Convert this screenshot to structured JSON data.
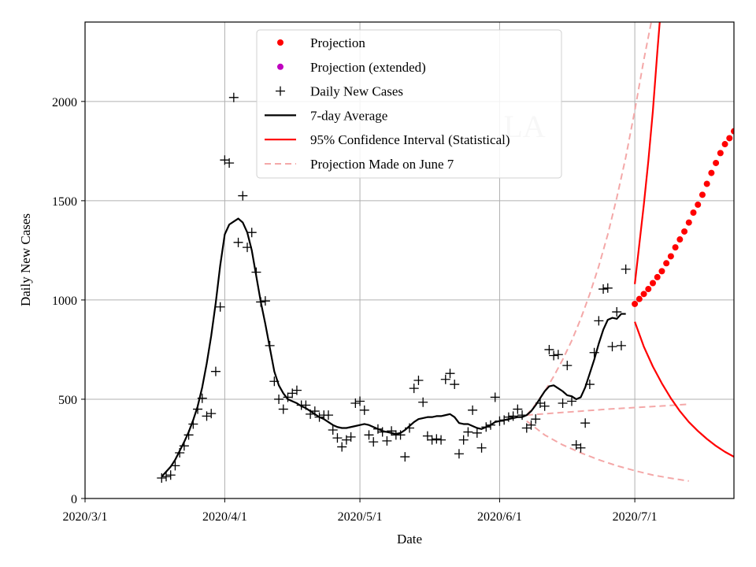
{
  "chart_data": {
    "type": "line",
    "title": "",
    "watermark": "LA",
    "xlabel": "Date",
    "ylabel": "Daily New Cases",
    "x_origin": "2020-03-01",
    "xlim_days": [
      0,
      144
    ],
    "ylim": [
      0,
      2400
    ],
    "grid": true,
    "legend_position": "top-center",
    "xticks": [
      {
        "day": 0,
        "label": "2020/3/1"
      },
      {
        "day": 31,
        "label": "2020/4/1"
      },
      {
        "day": 61,
        "label": "2020/5/1"
      },
      {
        "day": 92,
        "label": "2020/6/1"
      },
      {
        "day": 122,
        "label": "2020/7/1"
      }
    ],
    "yticks": [
      {
        "value": 0,
        "label": "0"
      },
      {
        "value": 500,
        "label": "500"
      },
      {
        "value": 1000,
        "label": "1000"
      },
      {
        "value": 1500,
        "label": "1500"
      },
      {
        "value": 2000,
        "label": "2000"
      }
    ],
    "legend": [
      {
        "key": "projection",
        "label": "Projection",
        "style": "dot",
        "color": "#ff0000"
      },
      {
        "key": "projection_ext",
        "label": "Projection (extended)",
        "style": "dot",
        "color": "#bf00bf"
      },
      {
        "key": "daily",
        "label": "Daily New Cases",
        "style": "plus",
        "color": "#000000"
      },
      {
        "key": "avg",
        "label": "7-day Average",
        "style": "line",
        "color": "#000000"
      },
      {
        "key": "ci",
        "label": "95% Confidence Interval (Statistical)",
        "style": "line",
        "color": "#ff0000"
      },
      {
        "key": "june7",
        "label": "Projection Made on June 7",
        "style": "dash",
        "color": "#f4a8a8"
      }
    ],
    "series": [
      {
        "name": "Daily New Cases",
        "kind": "scatter-plus",
        "color": "#000000",
        "points": [
          [
            17,
            103
          ],
          [
            18,
            110
          ],
          [
            19,
            118
          ],
          [
            20,
            165
          ],
          [
            21,
            230
          ],
          [
            22,
            265
          ],
          [
            23,
            320
          ],
          [
            24,
            375
          ],
          [
            25,
            450
          ],
          [
            26,
            505
          ],
          [
            27,
            415
          ],
          [
            28,
            428
          ],
          [
            29,
            640
          ],
          [
            30,
            965
          ],
          [
            31,
            1705
          ],
          [
            32,
            1690
          ],
          [
            33,
            2020
          ],
          [
            34,
            1290
          ],
          [
            35,
            1525
          ],
          [
            36,
            1265
          ],
          [
            37,
            1340
          ],
          [
            38,
            1140
          ],
          [
            39,
            990
          ],
          [
            40,
            995
          ],
          [
            41,
            770
          ],
          [
            42,
            590
          ],
          [
            43,
            500
          ],
          [
            44,
            450
          ],
          [
            45,
            510
          ],
          [
            46,
            530
          ],
          [
            47,
            545
          ],
          [
            48,
            470
          ],
          [
            49,
            470
          ],
          [
            50,
            425
          ],
          [
            51,
            440
          ],
          [
            52,
            410
          ],
          [
            53,
            420
          ],
          [
            54,
            420
          ],
          [
            55,
            345
          ],
          [
            56,
            305
          ],
          [
            57,
            260
          ],
          [
            58,
            295
          ],
          [
            59,
            310
          ],
          [
            60,
            480
          ],
          [
            61,
            490
          ],
          [
            62,
            445
          ],
          [
            63,
            320
          ],
          [
            64,
            285
          ],
          [
            65,
            350
          ],
          [
            66,
            335
          ],
          [
            67,
            290
          ],
          [
            68,
            340
          ],
          [
            69,
            320
          ],
          [
            70,
            320
          ],
          [
            71,
            210
          ],
          [
            72,
            355
          ],
          [
            73,
            555
          ],
          [
            74,
            595
          ],
          [
            75,
            485
          ],
          [
            76,
            315
          ],
          [
            77,
            295
          ],
          [
            78,
            300
          ],
          [
            79,
            295
          ],
          [
            80,
            600
          ],
          [
            81,
            630
          ],
          [
            82,
            575
          ],
          [
            83,
            225
          ],
          [
            84,
            295
          ],
          [
            85,
            335
          ],
          [
            86,
            445
          ],
          [
            87,
            330
          ],
          [
            88,
            255
          ],
          [
            89,
            360
          ],
          [
            90,
            370
          ],
          [
            91,
            510
          ],
          [
            92,
            390
          ],
          [
            93,
            395
          ],
          [
            94,
            410
          ],
          [
            95,
            415
          ],
          [
            96,
            450
          ],
          [
            97,
            420
          ],
          [
            98,
            355
          ],
          [
            99,
            370
          ],
          [
            100,
            400
          ],
          [
            101,
            480
          ],
          [
            102,
            465
          ],
          [
            103,
            750
          ],
          [
            104,
            720
          ],
          [
            105,
            725
          ],
          [
            106,
            480
          ],
          [
            107,
            670
          ],
          [
            108,
            490
          ],
          [
            109,
            270
          ],
          [
            110,
            255
          ],
          [
            111,
            380
          ],
          [
            112,
            575
          ],
          [
            113,
            735
          ],
          [
            114,
            895
          ],
          [
            115,
            1055
          ],
          [
            116,
            1060
          ],
          [
            117,
            765
          ],
          [
            118,
            940
          ],
          [
            119,
            770
          ],
          [
            120,
            1155
          ]
        ]
      },
      {
        "name": "7-day Average",
        "kind": "line",
        "color": "#000000",
        "points": [
          [
            17,
            110
          ],
          [
            18,
            135
          ],
          [
            19,
            160
          ],
          [
            20,
            195
          ],
          [
            21,
            240
          ],
          [
            22,
            285
          ],
          [
            23,
            335
          ],
          [
            24,
            395
          ],
          [
            25,
            465
          ],
          [
            26,
            560
          ],
          [
            27,
            680
          ],
          [
            28,
            820
          ],
          [
            29,
            985
          ],
          [
            30,
            1175
          ],
          [
            31,
            1330
          ],
          [
            32,
            1380
          ],
          [
            33,
            1395
          ],
          [
            34,
            1410
          ],
          [
            35,
            1390
          ],
          [
            36,
            1340
          ],
          [
            37,
            1250
          ],
          [
            38,
            1120
          ],
          [
            39,
            990
          ],
          [
            40,
            880
          ],
          [
            41,
            760
          ],
          [
            42,
            640
          ],
          [
            43,
            570
          ],
          [
            44,
            530
          ],
          [
            45,
            500
          ],
          [
            46,
            490
          ],
          [
            47,
            480
          ],
          [
            48,
            465
          ],
          [
            49,
            455
          ],
          [
            50,
            440
          ],
          [
            51,
            425
          ],
          [
            52,
            410
          ],
          [
            53,
            400
          ],
          [
            54,
            385
          ],
          [
            55,
            370
          ],
          [
            56,
            360
          ],
          [
            57,
            355
          ],
          [
            58,
            355
          ],
          [
            59,
            360
          ],
          [
            60,
            365
          ],
          [
            61,
            370
          ],
          [
            62,
            375
          ],
          [
            63,
            370
          ],
          [
            64,
            360
          ],
          [
            65,
            350
          ],
          [
            66,
            340
          ],
          [
            67,
            335
          ],
          [
            68,
            330
          ],
          [
            69,
            325
          ],
          [
            70,
            330
          ],
          [
            71,
            345
          ],
          [
            72,
            365
          ],
          [
            73,
            385
          ],
          [
            74,
            400
          ],
          [
            75,
            405
          ],
          [
            76,
            410
          ],
          [
            77,
            410
          ],
          [
            78,
            415
          ],
          [
            79,
            415
          ],
          [
            80,
            420
          ],
          [
            81,
            425
          ],
          [
            82,
            410
          ],
          [
            83,
            380
          ],
          [
            84,
            375
          ],
          [
            85,
            375
          ],
          [
            86,
            365
          ],
          [
            87,
            355
          ],
          [
            88,
            350
          ],
          [
            89,
            360
          ],
          [
            90,
            370
          ],
          [
            91,
            385
          ],
          [
            92,
            390
          ],
          [
            93,
            395
          ],
          [
            94,
            400
          ],
          [
            95,
            405
          ],
          [
            96,
            410
          ],
          [
            97,
            410
          ],
          [
            98,
            420
          ],
          [
            99,
            440
          ],
          [
            100,
            470
          ],
          [
            101,
            505
          ],
          [
            102,
            540
          ],
          [
            103,
            565
          ],
          [
            104,
            570
          ],
          [
            105,
            555
          ],
          [
            106,
            540
          ],
          [
            107,
            520
          ],
          [
            108,
            515
          ],
          [
            109,
            500
          ],
          [
            110,
            510
          ],
          [
            111,
            560
          ],
          [
            112,
            630
          ],
          [
            113,
            700
          ],
          [
            114,
            780
          ],
          [
            115,
            850
          ],
          [
            116,
            900
          ],
          [
            117,
            910
          ],
          [
            118,
            905
          ],
          [
            119,
            930
          ],
          [
            120,
            930
          ]
        ]
      },
      {
        "name": "Projection",
        "kind": "scatter-dot",
        "color": "#ff0000",
        "points": [
          [
            122,
            980
          ],
          [
            123,
            1005
          ],
          [
            124,
            1030
          ],
          [
            125,
            1055
          ],
          [
            126,
            1085
          ],
          [
            127,
            1115
          ],
          [
            128,
            1145
          ],
          [
            129,
            1185
          ],
          [
            130,
            1220
          ],
          [
            131,
            1265
          ],
          [
            132,
            1305
          ],
          [
            133,
            1345
          ],
          [
            134,
            1390
          ],
          [
            135,
            1440
          ],
          [
            136,
            1480
          ],
          [
            137,
            1530
          ],
          [
            138,
            1585
          ],
          [
            139,
            1640
          ],
          [
            140,
            1690
          ],
          [
            141,
            1740
          ],
          [
            142,
            1785
          ],
          [
            143,
            1815
          ],
          [
            144,
            1850
          ]
        ]
      },
      {
        "name": "95% CI upper",
        "kind": "line",
        "color": "#ff0000",
        "points": [
          [
            122,
            1080
          ],
          [
            123,
            1280
          ],
          [
            124,
            1480
          ],
          [
            125,
            1700
          ],
          [
            126,
            1950
          ],
          [
            127,
            2250
          ],
          [
            127.6,
            2420
          ]
        ]
      },
      {
        "name": "95% CI lower",
        "kind": "line",
        "color": "#ff0000",
        "points": [
          [
            122,
            890
          ],
          [
            124,
            765
          ],
          [
            126,
            665
          ],
          [
            128,
            580
          ],
          [
            130,
            505
          ],
          [
            132,
            440
          ],
          [
            134,
            385
          ],
          [
            136,
            340
          ],
          [
            138,
            300
          ],
          [
            140,
            265
          ],
          [
            142,
            235
          ],
          [
            144,
            210
          ]
        ]
      },
      {
        "name": "June 7 projection upper",
        "kind": "dash",
        "color": "#f4a8a8",
        "points": [
          [
            98,
            420
          ],
          [
            100,
            475
          ],
          [
            102,
            540
          ],
          [
            104,
            615
          ],
          [
            106,
            700
          ],
          [
            108,
            795
          ],
          [
            110,
            905
          ],
          [
            112,
            1030
          ],
          [
            114,
            1170
          ],
          [
            116,
            1330
          ],
          [
            118,
            1515
          ],
          [
            120,
            1720
          ],
          [
            122,
            1955
          ],
          [
            124,
            2210
          ],
          [
            126,
            2440
          ]
        ]
      },
      {
        "name": "June 7 projection middle",
        "kind": "dash",
        "color": "#f4a8a8",
        "points": [
          [
            98,
            420
          ],
          [
            104,
            430
          ],
          [
            110,
            440
          ],
          [
            116,
            450
          ],
          [
            122,
            458
          ],
          [
            128,
            466
          ],
          [
            134,
            475
          ]
        ]
      },
      {
        "name": "June 7 projection lower",
        "kind": "dash",
        "color": "#f4a8a8",
        "points": [
          [
            98,
            390
          ],
          [
            102,
            320
          ],
          [
            106,
            270
          ],
          [
            110,
            230
          ],
          [
            114,
            195
          ],
          [
            118,
            165
          ],
          [
            122,
            140
          ],
          [
            126,
            118
          ],
          [
            130,
            102
          ],
          [
            134,
            88
          ]
        ]
      }
    ]
  }
}
